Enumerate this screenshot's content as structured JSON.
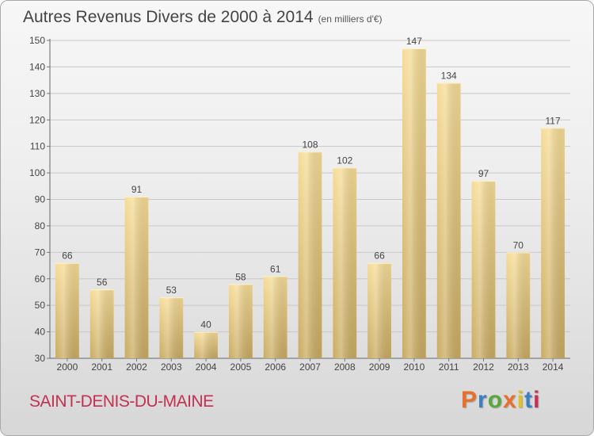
{
  "header": {
    "title": "Autres Revenus Divers de 2000 à 2014",
    "unit": "(en milliers d'€)"
  },
  "footer": {
    "commune": "SAINT-DENIS-DU-MAINE",
    "logo_text": "Proxiti",
    "logo_colors": [
      "#e8702a",
      "#3a7fc1",
      "#5aa83c",
      "#e8702a",
      "#e1c21e",
      "#3a7fc1",
      "#c33050"
    ]
  },
  "chart_data": {
    "type": "bar",
    "title": "Autres Revenus Divers de 2000 à 2014",
    "subtitle": "(en milliers d'€)",
    "xlabel": "",
    "ylabel": "",
    "categories": [
      "2000",
      "2001",
      "2002",
      "2003",
      "2004",
      "2005",
      "2006",
      "2007",
      "2008",
      "2009",
      "2010",
      "2011",
      "2012",
      "2013",
      "2014"
    ],
    "values": [
      66,
      56,
      91,
      53,
      40,
      58,
      61,
      108,
      102,
      66,
      147,
      134,
      97,
      70,
      117
    ],
    "ylim": [
      30,
      150
    ],
    "yticks": [
      30,
      40,
      50,
      60,
      70,
      80,
      90,
      100,
      110,
      120,
      130,
      140,
      150
    ],
    "grid": true,
    "bar_color": "#e6c982"
  }
}
